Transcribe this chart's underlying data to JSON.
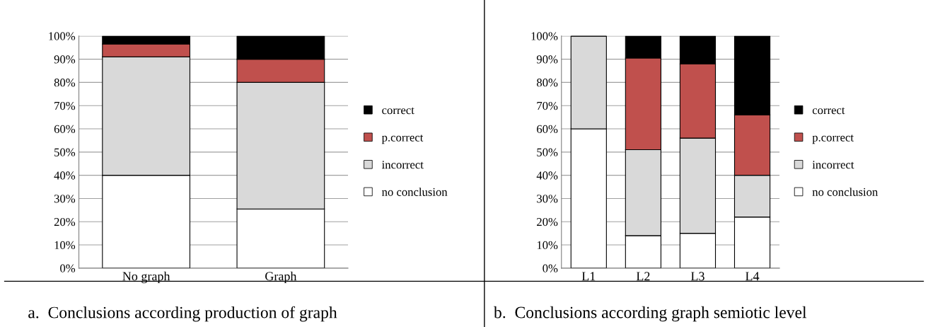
{
  "chart_data": [
    {
      "type": "bar",
      "stacked": true,
      "categories": [
        "No graph",
        "Graph"
      ],
      "series": [
        {
          "name": "no conclusion",
          "color": "#ffffff",
          "values": [
            40,
            25.5
          ]
        },
        {
          "name": "incorrect",
          "color": "#d9d9d9",
          "values": [
            51,
            54.5
          ]
        },
        {
          "name": "p.correct",
          "color": "#c0504d",
          "values": [
            5.5,
            10
          ]
        },
        {
          "name": "correct",
          "color": "#000000",
          "values": [
            3.5,
            10
          ]
        }
      ],
      "ylim": [
        0,
        100
      ],
      "yticks": [
        {
          "value": 0,
          "label": "0%"
        },
        {
          "value": 10,
          "label": "10%"
        },
        {
          "value": 20,
          "label": "20%"
        },
        {
          "value": 30,
          "label": "30%"
        },
        {
          "value": 40,
          "label": "40%"
        },
        {
          "value": 50,
          "label": "50%"
        },
        {
          "value": 60,
          "label": "60%"
        },
        {
          "value": 70,
          "label": "70%"
        },
        {
          "value": 80,
          "label": "80%"
        },
        {
          "value": 90,
          "label": "90%"
        },
        {
          "value": 100,
          "label": "100%"
        }
      ],
      "grid": "y",
      "legend": "right",
      "annotations": [
        "a.  Conclusions according production of graph"
      ]
    },
    {
      "type": "bar",
      "stacked": true,
      "categories": [
        "L1",
        "L2",
        "L3",
        "L4"
      ],
      "series": [
        {
          "name": "no conclusion",
          "color": "#ffffff",
          "values": [
            60,
            14,
            15,
            22
          ]
        },
        {
          "name": "incorrect",
          "color": "#d9d9d9",
          "values": [
            40,
            37,
            41,
            18
          ]
        },
        {
          "name": "p.correct",
          "color": "#c0504d",
          "values": [
            0,
            39.5,
            32,
            26
          ]
        },
        {
          "name": "correct",
          "color": "#000000",
          "values": [
            0,
            9.5,
            12,
            34
          ]
        }
      ],
      "ylim": [
        0,
        100
      ],
      "yticks": [
        {
          "value": 0,
          "label": "0%"
        },
        {
          "value": 10,
          "label": "10%"
        },
        {
          "value": 20,
          "label": "20%"
        },
        {
          "value": 30,
          "label": "30%"
        },
        {
          "value": 40,
          "label": "40%"
        },
        {
          "value": 50,
          "label": "50%"
        },
        {
          "value": 60,
          "label": "60%"
        },
        {
          "value": 70,
          "label": "70%"
        },
        {
          "value": 80,
          "label": "80%"
        },
        {
          "value": 90,
          "label": "90%"
        },
        {
          "value": 100,
          "label": "100%"
        }
      ],
      "grid": "y",
      "legend": "right",
      "annotations": [
        "b.  Conclusions according graph semiotic level"
      ]
    }
  ]
}
